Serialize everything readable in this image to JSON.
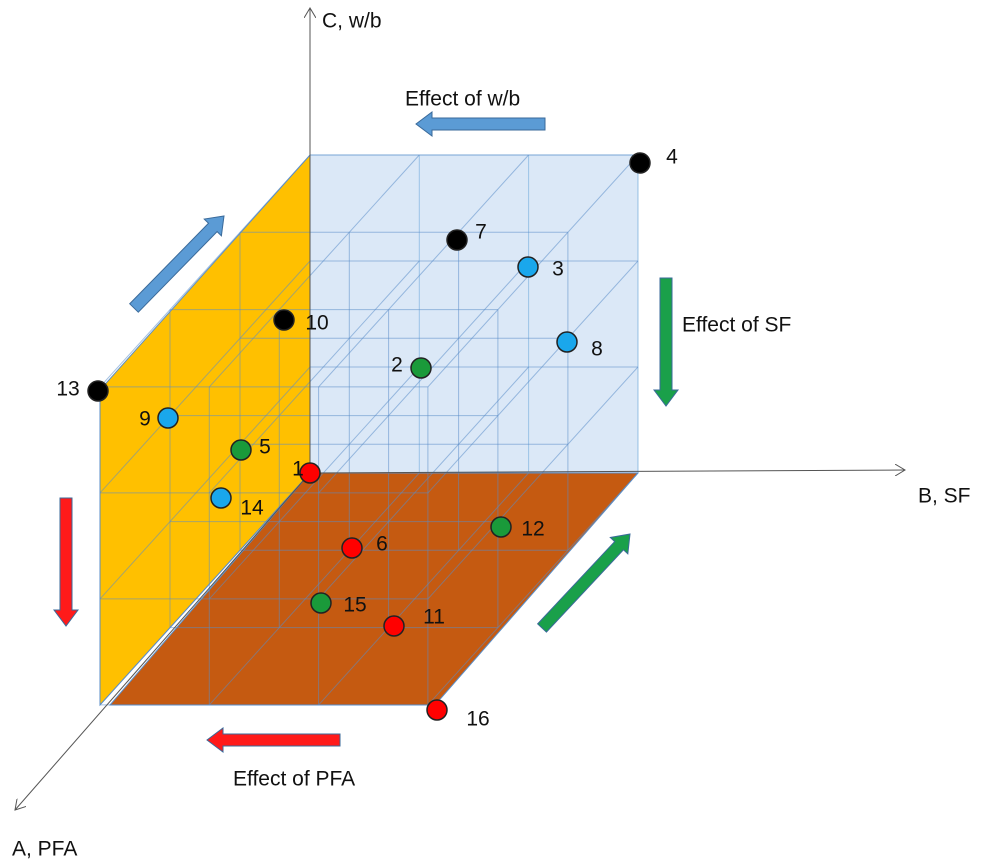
{
  "axes": {
    "c": "C, w/b",
    "b": "B, SF",
    "a": "A, PFA"
  },
  "effects": {
    "wb": "Effect of w/b",
    "sf": "Effect of SF",
    "pfa": "Effect of PFA"
  },
  "points": [
    {
      "label": "1",
      "color": "#ff0000"
    },
    {
      "label": "2",
      "color": "#1a9a3a"
    },
    {
      "label": "3",
      "color": "#1aa7ec"
    },
    {
      "label": "4",
      "color": "#000000"
    },
    {
      "label": "5",
      "color": "#1a9a3a"
    },
    {
      "label": "6",
      "color": "#ff0000"
    },
    {
      "label": "7",
      "color": "#000000"
    },
    {
      "label": "8",
      "color": "#1aa7ec"
    },
    {
      "label": "9",
      "color": "#1aa7ec"
    },
    {
      "label": "10",
      "color": "#000000"
    },
    {
      "label": "11",
      "color": "#ff0000"
    },
    {
      "label": "12",
      "color": "#1a9a3a"
    },
    {
      "label": "13",
      "color": "#000000"
    },
    {
      "label": "14",
      "color": "#1aa7ec"
    },
    {
      "label": "15",
      "color": "#1a9a3a"
    },
    {
      "label": "16",
      "color": "#ff0000"
    }
  ]
}
